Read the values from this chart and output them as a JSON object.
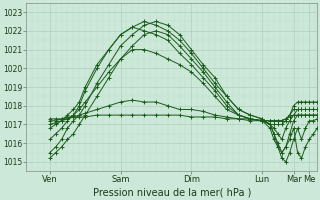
{
  "xlabel": "Pression niveau de la mer( hPa )",
  "background_color": "#cce8d8",
  "grid_color_major": "#a8c8b8",
  "grid_color_minor": "#b8d8c8",
  "line_color": "#1a5c1a",
  "xlim": [
    0,
    148
  ],
  "ylim": [
    1014.5,
    1023.5
  ],
  "yticks": [
    1015,
    1016,
    1017,
    1018,
    1019,
    1020,
    1021,
    1022,
    1023
  ],
  "xtick_positions": [
    12,
    48,
    84,
    120,
    136,
    144
  ],
  "xtick_labels": [
    "Ven",
    "Sam",
    "Dim",
    "Lun",
    "Mar",
    "Me"
  ],
  "series": [
    {
      "x": [
        12,
        15,
        18,
        21,
        24,
        27,
        30,
        36,
        42,
        48,
        54,
        60,
        66,
        72,
        78,
        84,
        90,
        96,
        102,
        108,
        114,
        120,
        124,
        126,
        128,
        130,
        132,
        134,
        136,
        138,
        140,
        142,
        144,
        146,
        148
      ],
      "y": [
        1015.2,
        1015.5,
        1015.8,
        1016.2,
        1016.5,
        1017.0,
        1017.5,
        1018.5,
        1019.5,
        1020.5,
        1021.2,
        1021.8,
        1022.0,
        1021.8,
        1021.2,
        1020.5,
        1019.8,
        1019.0,
        1018.2,
        1017.5,
        1017.3,
        1017.2,
        1016.8,
        1016.2,
        1015.8,
        1015.5,
        1015.8,
        1016.2,
        1016.8,
        1015.5,
        1015.2,
        1015.8,
        1016.2,
        1016.5,
        1016.8
      ]
    },
    {
      "x": [
        12,
        15,
        18,
        21,
        24,
        27,
        30,
        36,
        42,
        48,
        54,
        60,
        66,
        72,
        78,
        84,
        90,
        96,
        102,
        108,
        114,
        120,
        124,
        126,
        128,
        130,
        132,
        134,
        136,
        138,
        140,
        142,
        144,
        146,
        148
      ],
      "y": [
        1015.5,
        1015.8,
        1016.2,
        1016.8,
        1017.2,
        1017.5,
        1018.0,
        1019.2,
        1020.2,
        1021.2,
        1021.8,
        1022.3,
        1022.5,
        1022.3,
        1021.8,
        1021.0,
        1020.2,
        1019.5,
        1018.5,
        1017.8,
        1017.5,
        1017.3,
        1017.0,
        1016.5,
        1015.8,
        1015.2,
        1015.0,
        1015.5,
        1016.2,
        1016.8,
        1016.2,
        1016.8,
        1017.2,
        1017.2,
        1017.3
      ]
    },
    {
      "x": [
        12,
        15,
        18,
        21,
        24,
        27,
        30,
        36,
        42,
        48,
        54,
        60,
        66,
        72,
        78,
        84,
        90,
        96,
        102,
        108,
        114,
        120,
        124,
        126,
        128,
        130,
        132,
        134,
        136,
        138,
        140,
        142,
        144,
        146,
        148
      ],
      "y": [
        1016.2,
        1016.5,
        1016.8,
        1017.2,
        1017.5,
        1018.0,
        1018.8,
        1020.0,
        1021.0,
        1021.8,
        1022.2,
        1022.5,
        1022.3,
        1022.0,
        1021.5,
        1020.8,
        1020.0,
        1019.2,
        1018.5,
        1017.8,
        1017.5,
        1017.3,
        1017.0,
        1016.5,
        1016.0,
        1015.5,
        1015.8,
        1016.5,
        1017.2,
        1017.5,
        1017.5,
        1017.5,
        1017.5,
        1017.5,
        1017.5
      ]
    },
    {
      "x": [
        12,
        15,
        18,
        21,
        24,
        27,
        30,
        36,
        42,
        48,
        54,
        60,
        66,
        72,
        78,
        84,
        90,
        96,
        102,
        108,
        114,
        120,
        124,
        126,
        128,
        130,
        132,
        134,
        136,
        138,
        140,
        142,
        144,
        146,
        148
      ],
      "y": [
        1016.8,
        1017.0,
        1017.2,
        1017.5,
        1017.8,
        1018.2,
        1019.0,
        1020.2,
        1021.0,
        1021.8,
        1022.2,
        1022.0,
        1021.8,
        1021.5,
        1020.8,
        1020.2,
        1019.5,
        1018.8,
        1018.0,
        1017.5,
        1017.3,
        1017.2,
        1017.0,
        1016.8,
        1016.5,
        1016.2,
        1016.8,
        1017.2,
        1017.5,
        1017.8,
        1017.8,
        1017.8,
        1017.8,
        1017.8,
        1017.8
      ]
    },
    {
      "x": [
        12,
        15,
        18,
        21,
        24,
        27,
        30,
        36,
        42,
        48,
        54,
        60,
        66,
        72,
        78,
        84,
        90,
        96,
        102,
        108,
        114,
        120,
        124,
        126,
        128,
        130,
        132,
        134,
        136,
        138,
        140,
        142,
        144,
        146,
        148
      ],
      "y": [
        1017.0,
        1017.1,
        1017.2,
        1017.3,
        1017.5,
        1017.8,
        1018.2,
        1019.0,
        1019.8,
        1020.5,
        1021.0,
        1021.0,
        1020.8,
        1020.5,
        1020.2,
        1019.8,
        1019.2,
        1018.5,
        1017.8,
        1017.5,
        1017.3,
        1017.2,
        1017.0,
        1017.0,
        1017.0,
        1017.0,
        1017.2,
        1017.5,
        1018.0,
        1018.2,
        1018.2,
        1018.2,
        1018.2,
        1018.2,
        1018.2
      ]
    },
    {
      "x": [
        12,
        15,
        18,
        21,
        24,
        27,
        30,
        36,
        42,
        48,
        54,
        60,
        66,
        72,
        78,
        84,
        90,
        96,
        102,
        108,
        114,
        120,
        124,
        126,
        128,
        130,
        132,
        134,
        136,
        138,
        140,
        142,
        144,
        146,
        148
      ],
      "y": [
        1017.2,
        1017.2,
        1017.3,
        1017.3,
        1017.4,
        1017.5,
        1017.6,
        1017.8,
        1018.0,
        1018.2,
        1018.3,
        1018.2,
        1018.2,
        1018.0,
        1017.8,
        1017.8,
        1017.7,
        1017.5,
        1017.4,
        1017.3,
        1017.2,
        1017.2,
        1017.2,
        1017.2,
        1017.2,
        1017.2,
        1017.3,
        1017.5,
        1017.8,
        1017.8,
        1017.8,
        1017.8,
        1017.8,
        1017.8,
        1017.8
      ]
    },
    {
      "x": [
        12,
        15,
        18,
        21,
        24,
        27,
        30,
        36,
        42,
        48,
        54,
        60,
        66,
        72,
        78,
        84,
        90,
        96,
        102,
        108,
        114,
        120,
        124,
        126,
        128,
        130,
        132,
        134,
        136,
        138,
        140,
        142,
        144,
        146,
        148
      ],
      "y": [
        1017.3,
        1017.3,
        1017.3,
        1017.4,
        1017.4,
        1017.4,
        1017.4,
        1017.5,
        1017.5,
        1017.5,
        1017.5,
        1017.5,
        1017.5,
        1017.5,
        1017.5,
        1017.4,
        1017.4,
        1017.4,
        1017.3,
        1017.3,
        1017.3,
        1017.2,
        1017.2,
        1017.2,
        1017.2,
        1017.2,
        1017.3,
        1017.4,
        1017.5,
        1017.5,
        1017.5,
        1017.5,
        1017.5,
        1017.5,
        1017.5
      ]
    }
  ]
}
